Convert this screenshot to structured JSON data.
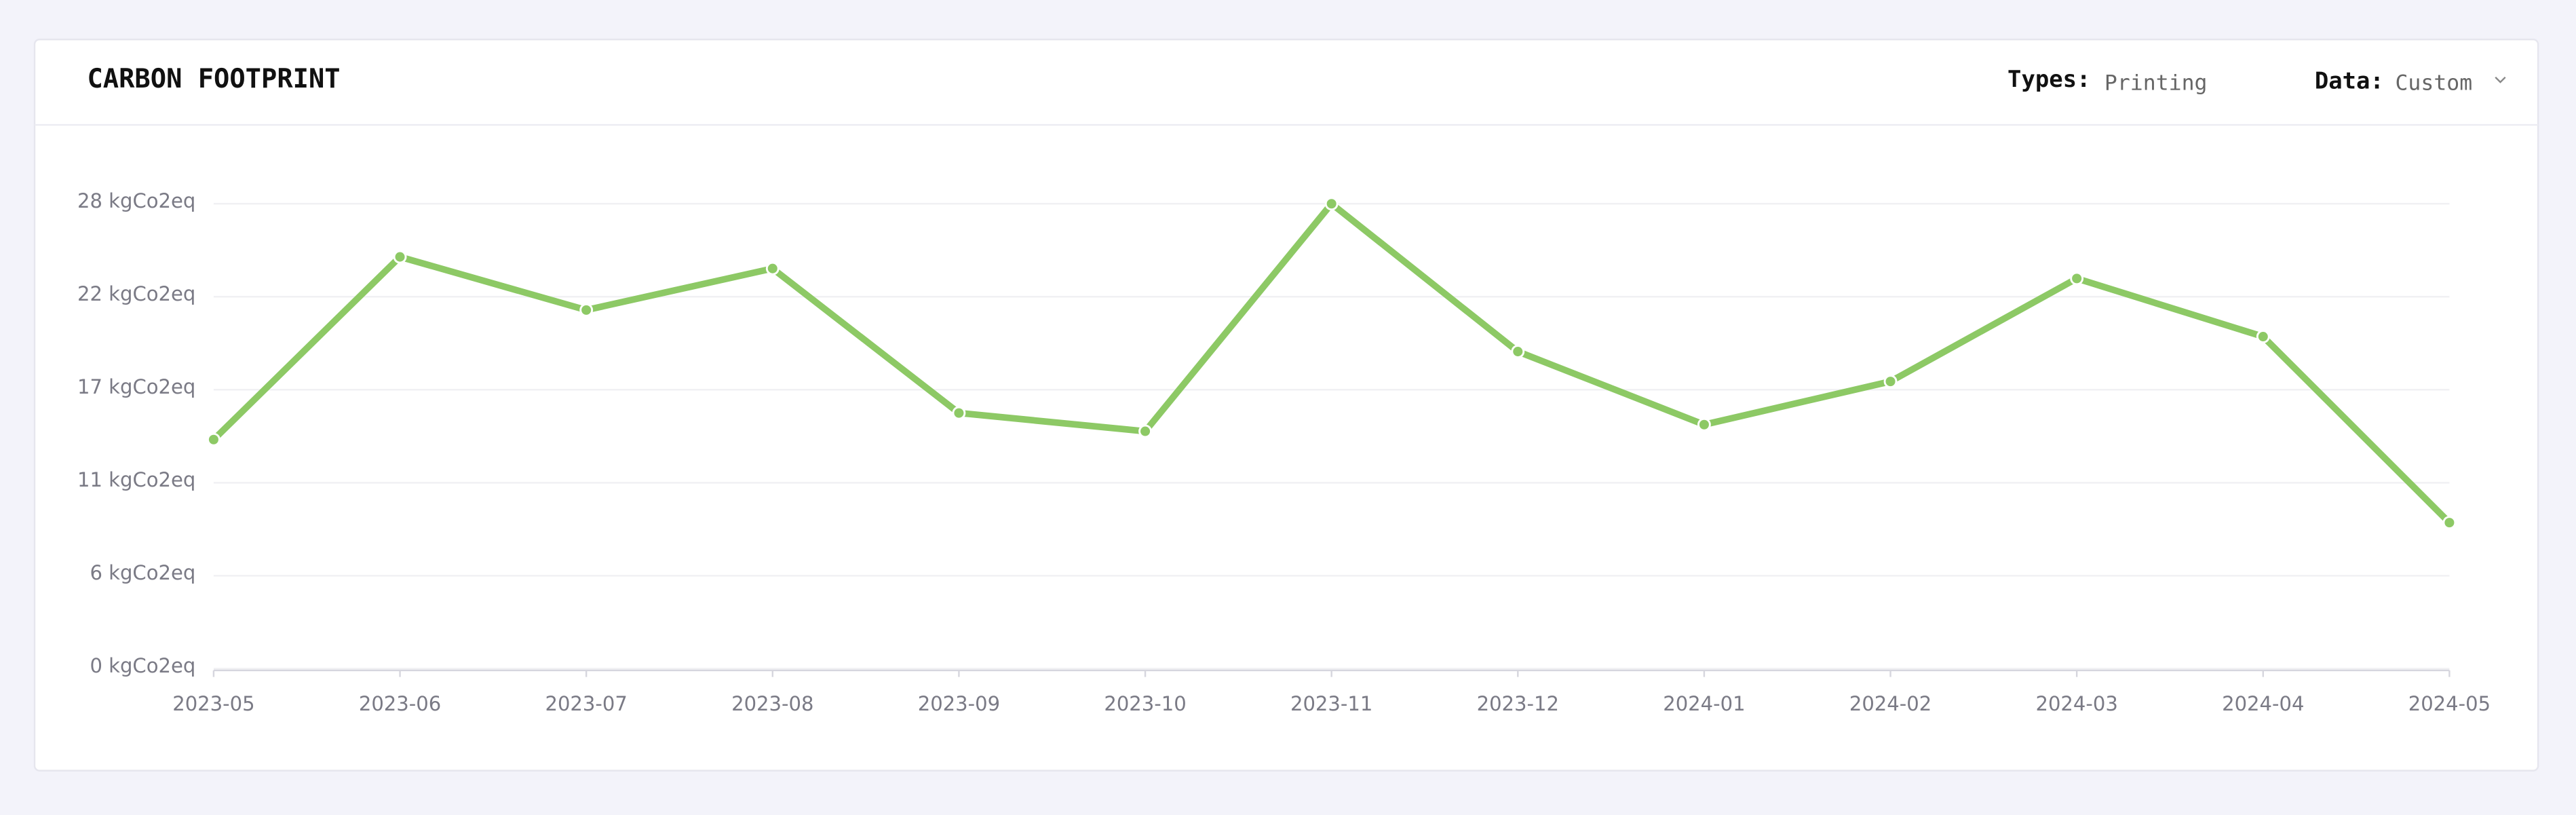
{
  "chart_data": {
    "type": "line",
    "title": "CARBON FOOTPRINT",
    "categories": [
      "2023-05",
      "2023-06",
      "2023-07",
      "2023-08",
      "2023-09",
      "2023-10",
      "2023-11",
      "2023-12",
      "2024-01",
      "2024-02",
      "2024-03",
      "2024-04",
      "2024-05"
    ],
    "values": [
      13.8,
      24.8,
      21.6,
      24.1,
      15.4,
      14.3,
      28.0,
      19.1,
      14.7,
      17.3,
      23.5,
      20.0,
      8.8
    ],
    "color": "#8dc965",
    "ylim": [
      0,
      28
    ],
    "yticks": [
      {
        "value": 0,
        "label": "0 kgCo2eq"
      },
      {
        "value": 5.6,
        "label": "6 kgCo2eq"
      },
      {
        "value": 11.2,
        "label": "11 kgCo2eq"
      },
      {
        "value": 16.8,
        "label": "17 kgCo2eq"
      },
      {
        "value": 22.4,
        "label": "22 kgCo2eq"
      },
      {
        "value": 28,
        "label": "28 kgCo2eq"
      }
    ],
    "grid": true
  },
  "filters": [
    {
      "label": "Types:",
      "value": "Printing"
    },
    {
      "label": "Data:",
      "value": "Custom"
    }
  ]
}
